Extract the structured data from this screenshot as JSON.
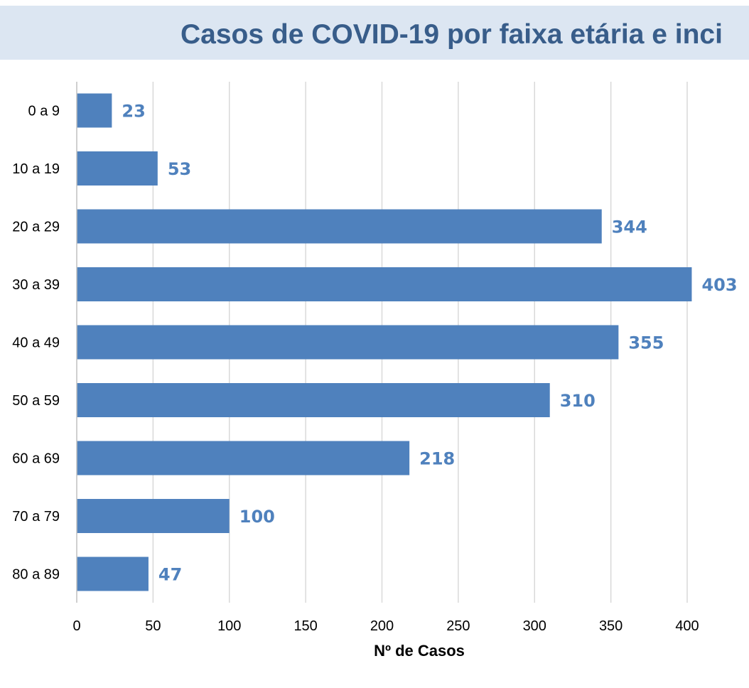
{
  "colors": {
    "bar": "#4f81bd",
    "data_label": "#4f81bd",
    "title": "#385d8a",
    "title_background": "#dce6f2",
    "grid": "#d9d9d9"
  },
  "chart_data": {
    "type": "bar",
    "orientation": "horizontal",
    "title": "Casos de COVID-19 por faixa etária e inci",
    "xlabel": "Nº de Casos",
    "ylabel": "",
    "categories": [
      "0 a 9",
      "10 a 19",
      "20 a 29",
      "30 a 39",
      "40 a 49",
      "50 a 59",
      "60  a 69",
      "70 a 79",
      "80 a 89"
    ],
    "values": [
      23,
      53,
      344,
      403,
      355,
      310,
      218,
      100,
      47
    ],
    "xlim": [
      0,
      400
    ],
    "x_ticks": [
      "0",
      "50",
      "100",
      "150",
      "200",
      "250",
      "300",
      "350",
      "400"
    ],
    "grid": "vertical",
    "data_labels": true,
    "legend": "none"
  }
}
